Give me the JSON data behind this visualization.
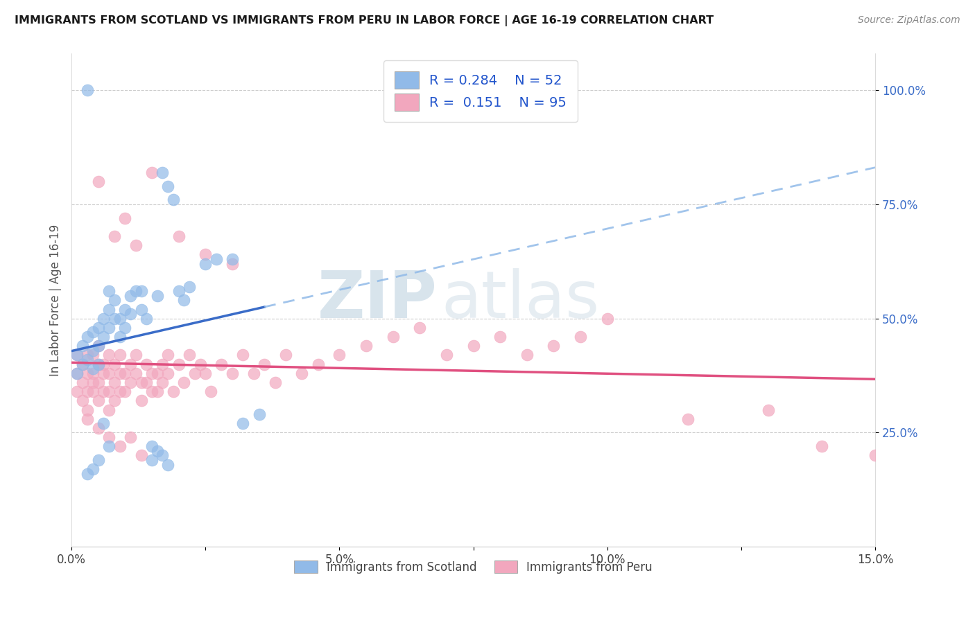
{
  "title": "IMMIGRANTS FROM SCOTLAND VS IMMIGRANTS FROM PERU IN LABOR FORCE | AGE 16-19 CORRELATION CHART",
  "source": "Source: ZipAtlas.com",
  "ylabel": "In Labor Force | Age 16-19",
  "xlim": [
    0.0,
    0.15
  ],
  "ylim": [
    0.0,
    1.08
  ],
  "xtick_labels": [
    "0.0%",
    "",
    "5.0%",
    "",
    "10.0%",
    "",
    "15.0%"
  ],
  "xtick_vals": [
    0.0,
    0.025,
    0.05,
    0.075,
    0.1,
    0.125,
    0.15
  ],
  "ytick_labels": [
    "25.0%",
    "50.0%",
    "75.0%",
    "100.0%"
  ],
  "ytick_vals": [
    0.25,
    0.5,
    0.75,
    1.0
  ],
  "scotland_color": "#91BAE8",
  "peru_color": "#F2A7BE",
  "scotland_line_color": "#3A6CC8",
  "peru_line_color": "#E05080",
  "scotland_dash_color": "#91BAE8",
  "scotland_R": 0.284,
  "scotland_N": 52,
  "peru_R": 0.151,
  "peru_N": 95,
  "sc_x": [
    0.001,
    0.001,
    0.002,
    0.002,
    0.003,
    0.003,
    0.004,
    0.004,
    0.004,
    0.005,
    0.005,
    0.005,
    0.006,
    0.006,
    0.007,
    0.007,
    0.007,
    0.008,
    0.008,
    0.009,
    0.009,
    0.01,
    0.01,
    0.011,
    0.011,
    0.012,
    0.013,
    0.013,
    0.014,
    0.015,
    0.015,
    0.016,
    0.016,
    0.017,
    0.018,
    0.019,
    0.02,
    0.021,
    0.022,
    0.025,
    0.027,
    0.03,
    0.032,
    0.035,
    0.003,
    0.004,
    0.005,
    0.006,
    0.007,
    0.017,
    0.018,
    0.003
  ],
  "sc_y": [
    0.42,
    0.38,
    0.44,
    0.4,
    0.46,
    0.41,
    0.43,
    0.39,
    0.47,
    0.44,
    0.4,
    0.48,
    0.5,
    0.46,
    0.56,
    0.52,
    0.48,
    0.54,
    0.5,
    0.5,
    0.46,
    0.52,
    0.48,
    0.55,
    0.51,
    0.56,
    0.56,
    0.52,
    0.5,
    0.22,
    0.19,
    0.21,
    0.55,
    0.82,
    0.79,
    0.76,
    0.56,
    0.54,
    0.57,
    0.62,
    0.63,
    0.63,
    0.27,
    0.29,
    0.16,
    0.17,
    0.19,
    0.27,
    0.22,
    0.2,
    0.18,
    1.0
  ],
  "pe_x": [
    0.001,
    0.001,
    0.001,
    0.002,
    0.002,
    0.002,
    0.003,
    0.003,
    0.003,
    0.003,
    0.004,
    0.004,
    0.004,
    0.004,
    0.005,
    0.005,
    0.005,
    0.005,
    0.006,
    0.006,
    0.006,
    0.007,
    0.007,
    0.007,
    0.007,
    0.008,
    0.008,
    0.008,
    0.009,
    0.009,
    0.009,
    0.01,
    0.01,
    0.011,
    0.011,
    0.012,
    0.012,
    0.013,
    0.013,
    0.014,
    0.014,
    0.015,
    0.015,
    0.016,
    0.016,
    0.017,
    0.017,
    0.018,
    0.018,
    0.019,
    0.02,
    0.021,
    0.022,
    0.023,
    0.024,
    0.025,
    0.026,
    0.028,
    0.03,
    0.032,
    0.034,
    0.036,
    0.038,
    0.04,
    0.043,
    0.046,
    0.05,
    0.055,
    0.06,
    0.065,
    0.07,
    0.075,
    0.08,
    0.085,
    0.09,
    0.095,
    0.005,
    0.008,
    0.01,
    0.012,
    0.015,
    0.02,
    0.025,
    0.03,
    0.003,
    0.005,
    0.007,
    0.009,
    0.011,
    0.013,
    0.1,
    0.115,
    0.13,
    0.14,
    0.15
  ],
  "pe_y": [
    0.38,
    0.34,
    0.42,
    0.36,
    0.32,
    0.4,
    0.38,
    0.34,
    0.42,
    0.3,
    0.38,
    0.34,
    0.42,
    0.36,
    0.4,
    0.36,
    0.32,
    0.44,
    0.38,
    0.34,
    0.4,
    0.38,
    0.34,
    0.42,
    0.3,
    0.4,
    0.36,
    0.32,
    0.38,
    0.34,
    0.42,
    0.38,
    0.34,
    0.4,
    0.36,
    0.42,
    0.38,
    0.36,
    0.32,
    0.4,
    0.36,
    0.38,
    0.34,
    0.38,
    0.34,
    0.4,
    0.36,
    0.42,
    0.38,
    0.34,
    0.4,
    0.36,
    0.42,
    0.38,
    0.4,
    0.38,
    0.34,
    0.4,
    0.38,
    0.42,
    0.38,
    0.4,
    0.36,
    0.42,
    0.38,
    0.4,
    0.42,
    0.44,
    0.46,
    0.48,
    0.42,
    0.44,
    0.46,
    0.42,
    0.44,
    0.46,
    0.8,
    0.68,
    0.72,
    0.66,
    0.82,
    0.68,
    0.64,
    0.62,
    0.28,
    0.26,
    0.24,
    0.22,
    0.24,
    0.2,
    0.5,
    0.28,
    0.3,
    0.22,
    0.2
  ],
  "watermark_zip_size": 68,
  "watermark_atlas_size": 68
}
